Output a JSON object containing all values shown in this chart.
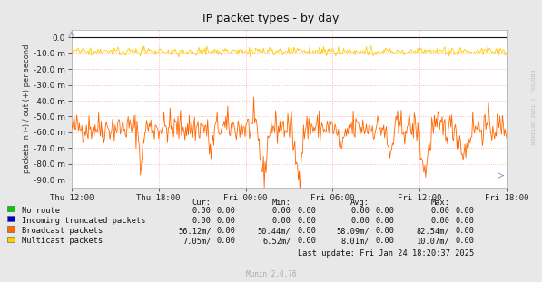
{
  "title": "IP packet types - by day",
  "ylabel": "packets in (-) / out (+) per second",
  "background_color": "#e8e8e8",
  "plot_bg_color": "#ffffff",
  "grid_color": "#ff9999",
  "ylim": [
    -95000000.0,
    5000000.0
  ],
  "yticks": [
    0.0,
    -10000000.0,
    -20000000.0,
    -30000000.0,
    -40000000.0,
    -50000000.0,
    -60000000.0,
    -70000000.0,
    -80000000.0,
    -90000000.0
  ],
  "ytick_labels": [
    "0.0",
    "-10.0 m",
    "-20.0 m",
    "-30.0 m",
    "-40.0 m",
    "-50.0 m",
    "-60.0 m",
    "-70.0 m",
    "-80.0 m",
    "-90.0 m"
  ],
  "xtick_labels": [
    "Thu 12:00",
    "Thu 18:00",
    "Fri 00:00",
    "Fri 06:00",
    "Fri 12:00",
    "Fri 18:00"
  ],
  "broadcast_color": "#ff6600",
  "multicast_color": "#ffcc00",
  "no_route_color": "#00cc00",
  "truncated_color": "#0000ff",
  "broadcast_base": -57000000.0,
  "broadcast_std": 5000000.0,
  "multicast_base": -9000000.0,
  "multicast_std": 1200000.0,
  "legend_items": [
    {
      "label": "No route",
      "color": "#00cc00"
    },
    {
      "label": "Incoming truncated packets",
      "color": "#0000cc"
    },
    {
      "label": "Broadcast packets",
      "color": "#ff6600"
    },
    {
      "label": "Multicast packets",
      "color": "#ffcc00"
    }
  ],
  "legend_cur": [
    "0.00",
    "0.00",
    "56.12m/",
    "7.05m/"
  ],
  "legend_cur2": [
    "0.00",
    "0.00",
    "0.00",
    "0.00"
  ],
  "legend_min": [
    "0.00",
    "0.00",
    "50.44m/",
    "6.52m/"
  ],
  "legend_min2": [
    "0.00",
    "0.00",
    "0.00",
    "0.00"
  ],
  "legend_avg": [
    "0.00",
    "0.00",
    "58.09m/",
    "8.01m/"
  ],
  "legend_avg2": [
    "0.00",
    "0.00",
    "0.00",
    "0.00"
  ],
  "legend_max": [
    "0.00",
    "0.00",
    "82.54m/",
    "10.07m/"
  ],
  "legend_max2": [
    "0.00",
    "0.00",
    "0.00",
    "0.00"
  ],
  "last_update": "Last update: Fri Jan 24 18:20:37 2025",
  "munin_version": "Munin 2.0.76",
  "right_label": "RRDTOOL / TOBI OETIKER",
  "arrow_color": "#9999cc"
}
